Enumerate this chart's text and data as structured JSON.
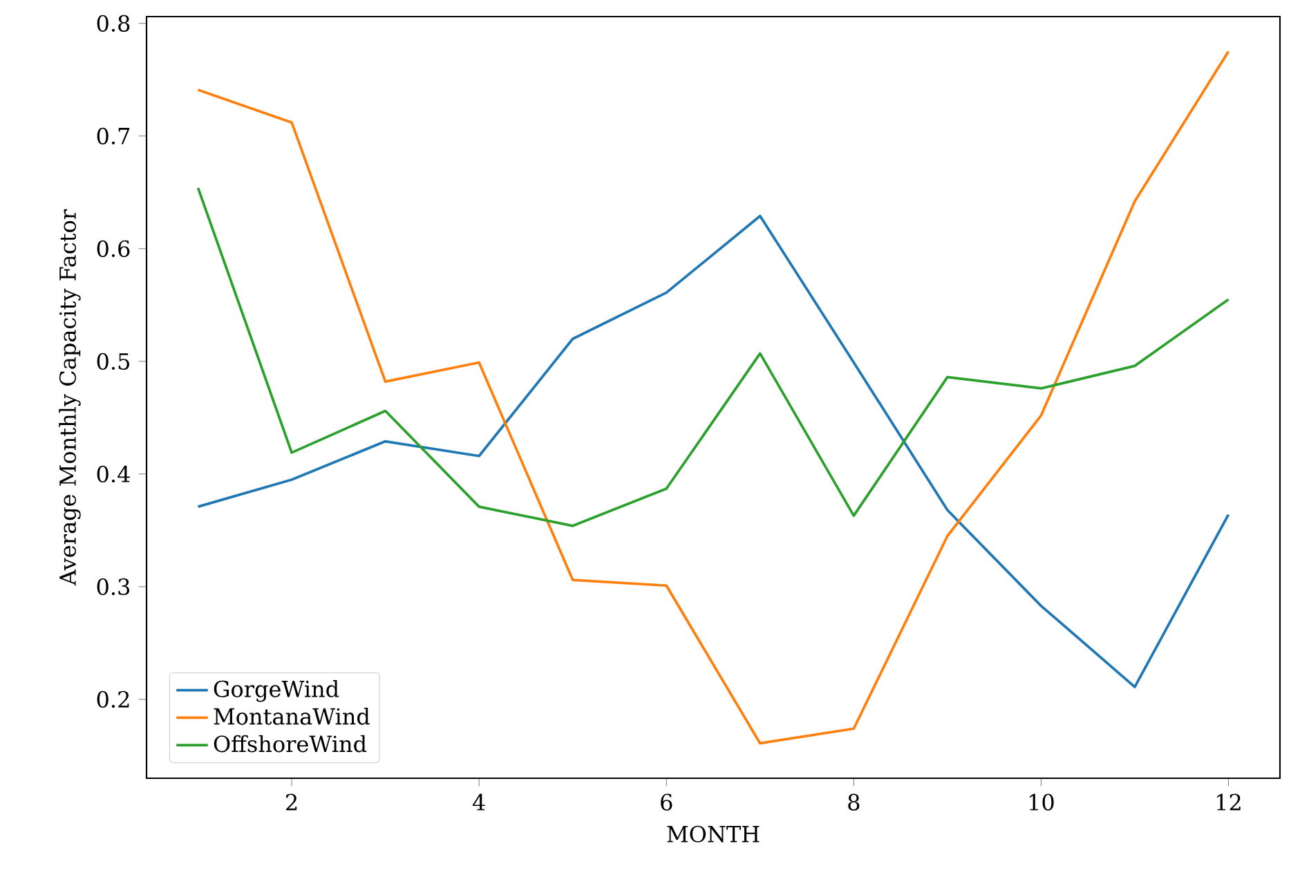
{
  "chart_data": {
    "type": "line",
    "xlabel": "MONTH",
    "ylabel": "Average Monthly Capacity Factor",
    "x": [
      1,
      2,
      3,
      4,
      5,
      6,
      7,
      8,
      9,
      10,
      11,
      12
    ],
    "series": [
      {
        "name": "GorgeWind",
        "color": "#1f77b4",
        "values": [
          0.371,
          0.395,
          0.429,
          0.416,
          0.52,
          0.561,
          0.629,
          0.499,
          0.368,
          0.283,
          0.211,
          0.364
        ]
      },
      {
        "name": "MontanaWind",
        "color": "#ff7f0e",
        "values": [
          0.741,
          0.712,
          0.482,
          0.499,
          0.306,
          0.301,
          0.161,
          0.174,
          0.345,
          0.452,
          0.642,
          0.775
        ]
      },
      {
        "name": "OffshoreWind",
        "color": "#2ca02c",
        "values": [
          0.654,
          0.419,
          0.456,
          0.371,
          0.354,
          0.387,
          0.507,
          0.363,
          0.486,
          0.476,
          0.496,
          0.555
        ]
      }
    ],
    "xlim": [
      0.45,
      12.55
    ],
    "ylim": [
      0.13,
      0.806
    ],
    "xticks": [
      2,
      4,
      6,
      8,
      10,
      12
    ],
    "yticks": [
      0.2,
      0.3,
      0.4,
      0.5,
      0.6,
      0.7,
      0.8
    ],
    "legend": "bottom left",
    "grid": false,
    "marker": "none",
    "line_style": "solid"
  }
}
